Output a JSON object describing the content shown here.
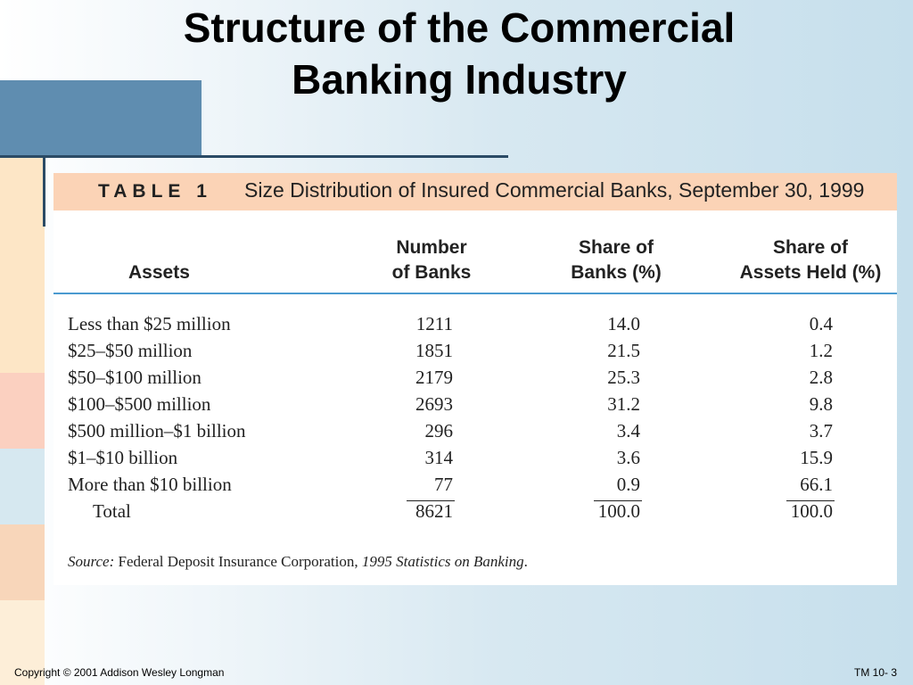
{
  "slide": {
    "title": "Structure of the Commercial Banking Industry",
    "footer_left": "Copyright © 2001 Addison Wesley Longman",
    "footer_right": "TM 10- 3"
  },
  "table": {
    "label": "TABLE 1",
    "caption": "Size Distribution of Insured Commercial Banks, September 30, 1999",
    "headers": {
      "assets": "Assets",
      "number_line1": "Number",
      "number_line2": "of Banks",
      "share_banks_line1": "Share of",
      "share_banks_line2": "Banks (%)",
      "share_assets_line1": "Share of",
      "share_assets_line2": "Assets Held (%)"
    },
    "rows": [
      {
        "assets": "Less than $25 million",
        "number": "1211",
        "share_banks": "14.0",
        "share_assets": "0.4"
      },
      {
        "assets": "$25–$50 million",
        "number": "1851",
        "share_banks": "21.5",
        "share_assets": "1.2"
      },
      {
        "assets": "$50–$100 million",
        "number": "2179",
        "share_banks": "25.3",
        "share_assets": "2.8"
      },
      {
        "assets": "$100–$500 million",
        "number": "2693",
        "share_banks": "31.2",
        "share_assets": "9.8"
      },
      {
        "assets": "$500 million–$1 billion",
        "number": "296",
        "share_banks": "3.4",
        "share_assets": "3.7"
      },
      {
        "assets": "$1–$10 billion",
        "number": "314",
        "share_banks": "3.6",
        "share_assets": "15.9"
      },
      {
        "assets": "More than $10 billion",
        "number": "77",
        "share_banks": "0.9",
        "share_assets": "66.1"
      }
    ],
    "total": {
      "assets": "Total",
      "number": "8621",
      "share_banks": "100.0",
      "share_assets": "100.0"
    },
    "source_label": "Source:",
    "source_text": "Federal Deposit Insurance Corporation,",
    "source_title": "1995 Statistics on Banking",
    "source_end": "."
  },
  "colors": {
    "accent_blue": "#5f8db0",
    "caption_bar": "#fbd3b6",
    "header_rule": "#4a9ad0"
  }
}
